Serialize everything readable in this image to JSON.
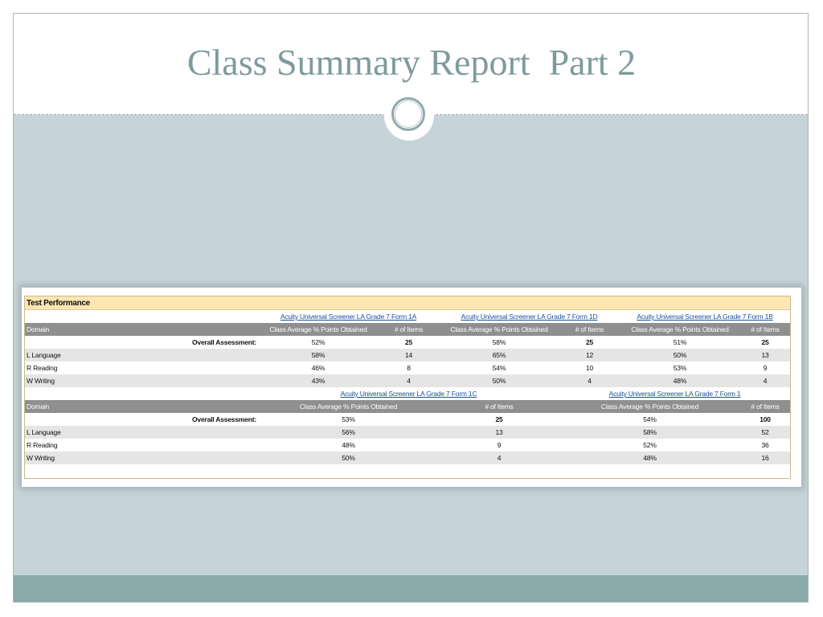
{
  "slide": {
    "title": "Class Summary Report  Part 2"
  },
  "report": {
    "section_title": "Test Performance",
    "domain_header": "Domain",
    "avg_header": "Class Average % Points Obtained",
    "items_header": "# of Items",
    "overall_label": "Overall Assessment:",
    "domains": [
      "L Language",
      "R Reading",
      "W Writing"
    ],
    "top_tests": [
      "Acuity Universal Screener LA Grade 7 Form 1A",
      "Acuity Universal Screener LA Grade 7 Form 1D",
      "Acuity Universal Screener LA Grade 7 Form 1B"
    ],
    "top_rows": {
      "overall": [
        "52%",
        "25",
        "58%",
        "25",
        "51%",
        "25"
      ],
      "language": [
        "58%",
        "14",
        "65%",
        "12",
        "50%",
        "13"
      ],
      "reading": [
        "46%",
        "8",
        "54%",
        "10",
        "53%",
        "9"
      ],
      "writing": [
        "43%",
        "4",
        "50%",
        "4",
        "48%",
        "4"
      ]
    },
    "bottom_tests": [
      "Acuity Universal Screener LA Grade 7 Form 1C",
      "Acuity Universal Screener LA Grade 7 Form 1"
    ],
    "bottom_rows": {
      "overall": [
        "53%",
        "25",
        "54%",
        "100"
      ],
      "language": [
        "56%",
        "13",
        "58%",
        "52"
      ],
      "reading": [
        "48%",
        "9",
        "52%",
        "36"
      ],
      "writing": [
        "50%",
        "4",
        "48%",
        "16"
      ]
    }
  }
}
